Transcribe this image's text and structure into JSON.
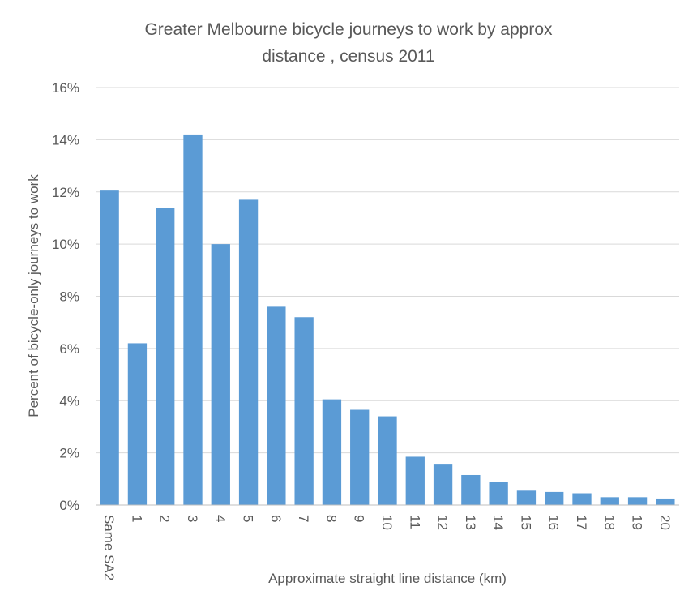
{
  "chart_data": {
    "type": "bar",
    "title_lines": [
      "Greater Melbourne bicycle journeys to work by approx",
      "distance , census 2011"
    ],
    "xlabel": "Approximate straight line distance (km)",
    "ylabel": "Percent of bicycle-only journeys to work",
    "categories": [
      "Same SA2",
      "1",
      "2",
      "3",
      "4",
      "5",
      "6",
      "7",
      "8",
      "9",
      "10",
      "11",
      "12",
      "13",
      "14",
      "15",
      "16",
      "17",
      "18",
      "19",
      "20"
    ],
    "values": [
      12.05,
      6.2,
      11.4,
      14.2,
      10.0,
      11.7,
      7.6,
      7.2,
      4.05,
      3.65,
      3.4,
      1.85,
      1.55,
      1.15,
      0.9,
      0.55,
      0.5,
      0.45,
      0.3,
      0.3,
      0.25
    ],
    "ylim": [
      0,
      16
    ],
    "yticks": [
      "0%",
      "2%",
      "4%",
      "6%",
      "8%",
      "10%",
      "12%",
      "14%",
      "16%"
    ],
    "ytick_values": [
      0,
      2,
      4,
      6,
      8,
      10,
      12,
      14,
      16
    ],
    "grid": true,
    "legend": "none",
    "colors": {
      "bar": "#5B9BD5",
      "grid": "#D9D9D9",
      "text": "#595959",
      "axis": "#BFBFBF"
    }
  }
}
